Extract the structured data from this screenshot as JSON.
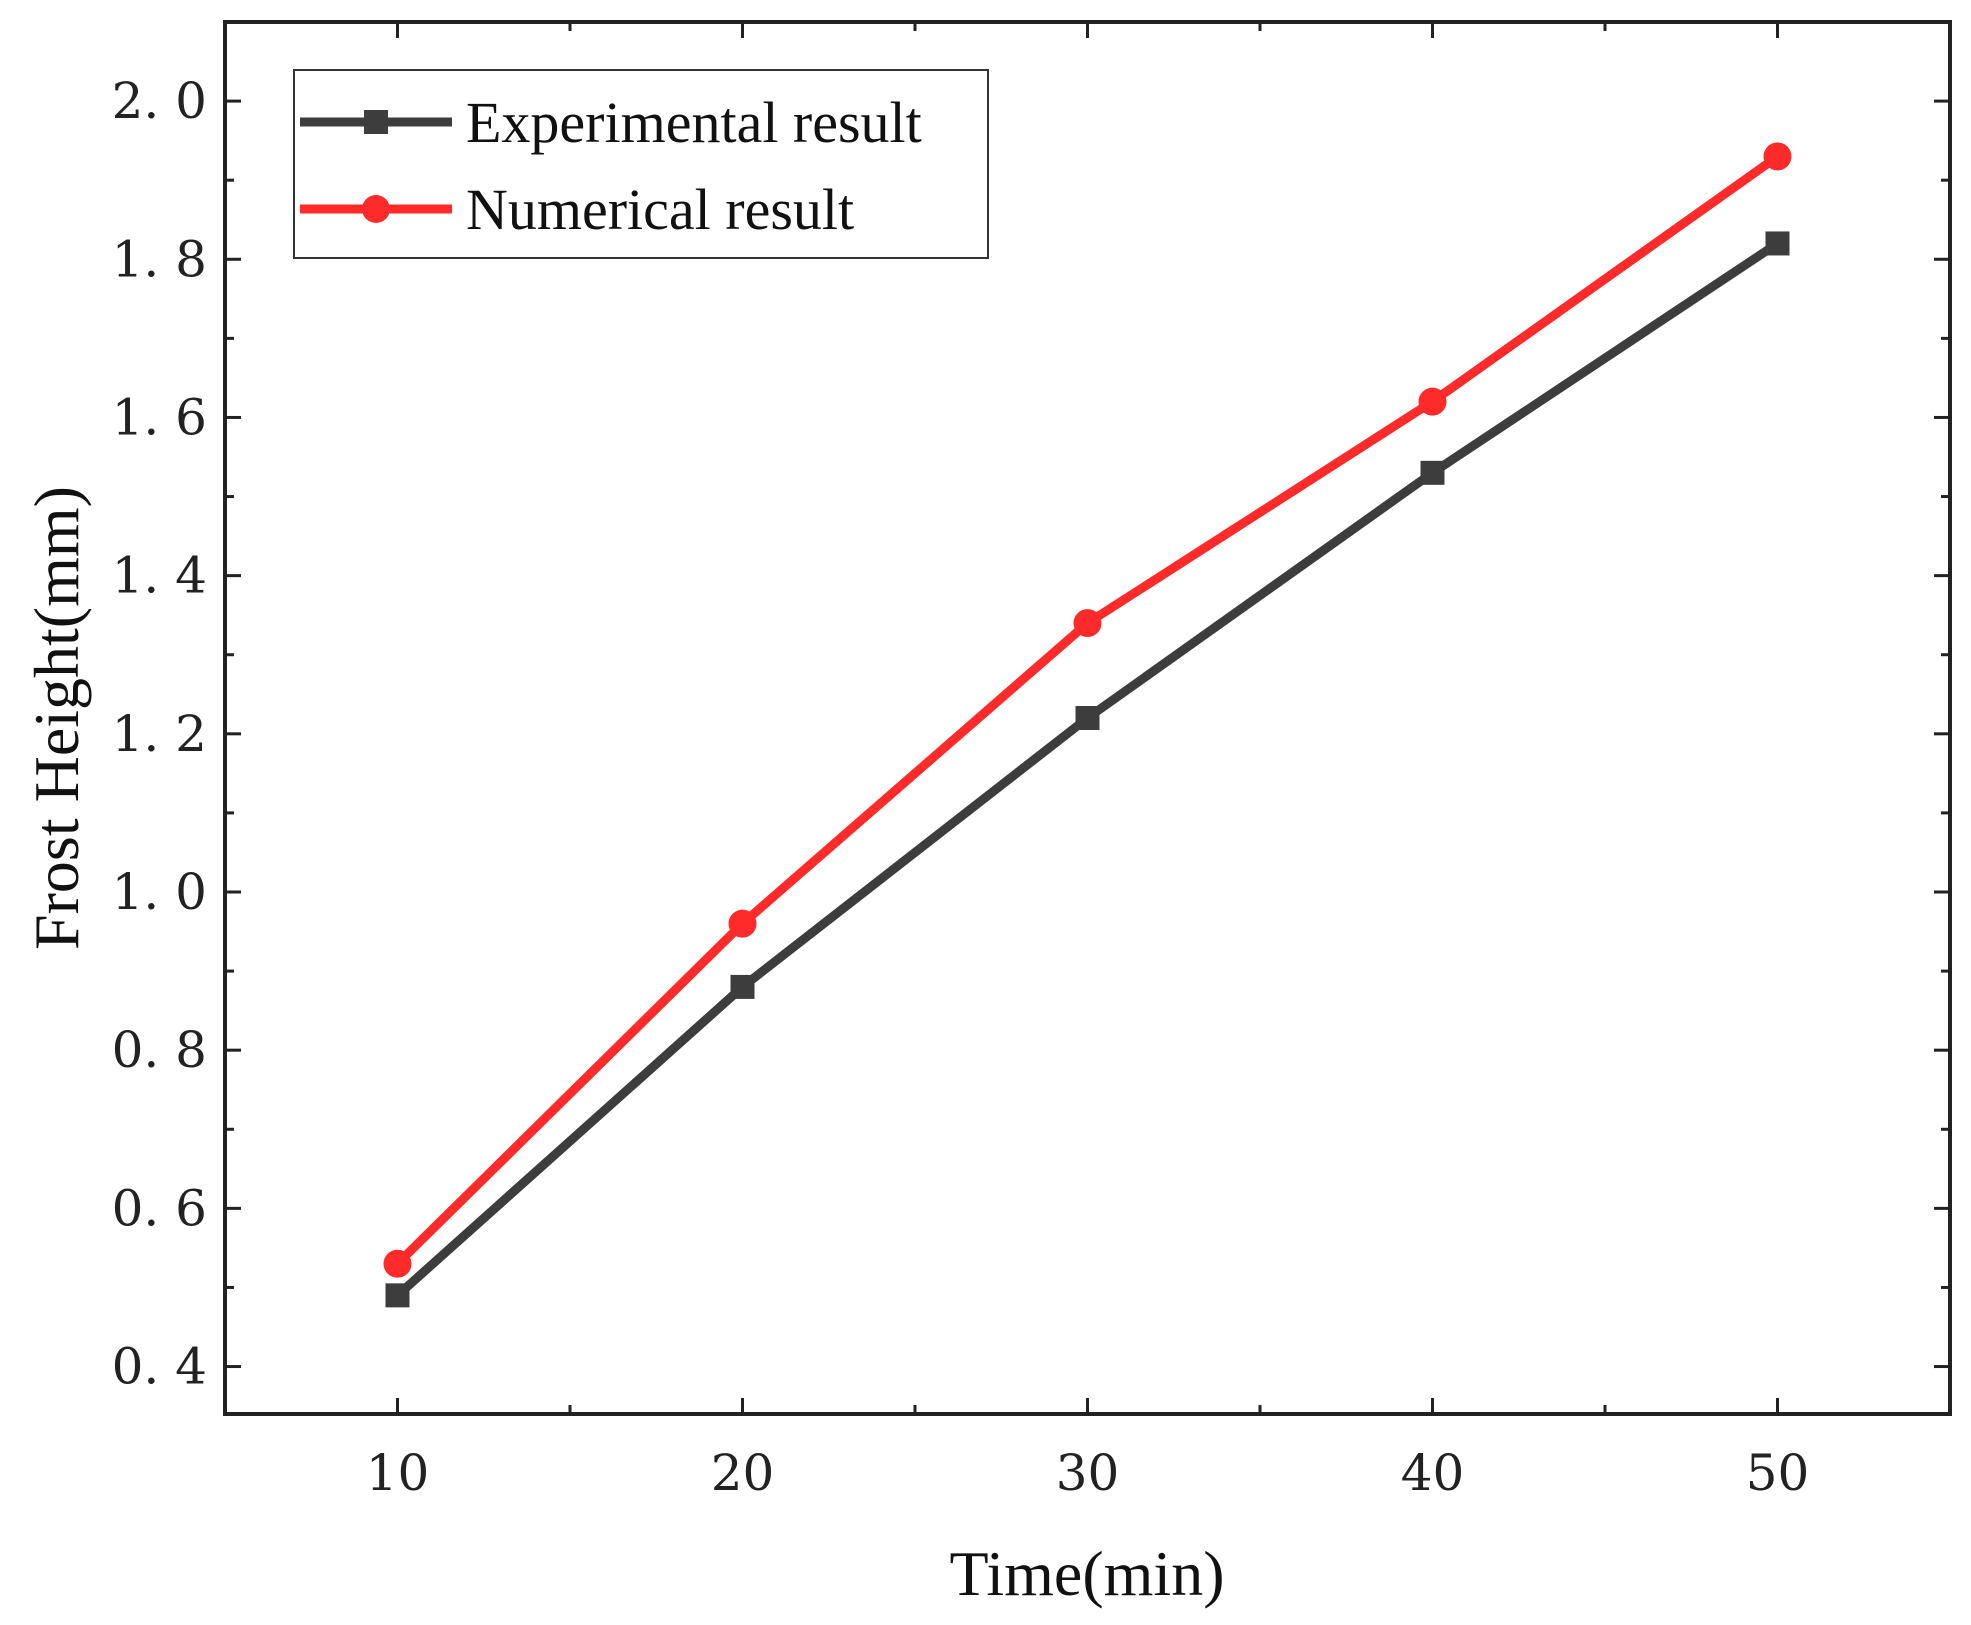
{
  "chart_data": {
    "type": "line",
    "title": "",
    "xlabel": "Time(min)",
    "ylabel": "Frost Height(mm)",
    "x": [
      10,
      20,
      30,
      40,
      50
    ],
    "xlim": [
      5,
      55
    ],
    "ylim": [
      0.34,
      2.1
    ],
    "xticks": [
      10,
      20,
      30,
      40,
      50
    ],
    "xtick_labels": [
      "10",
      "20",
      "30",
      "40",
      "50"
    ],
    "yticks": [
      0.4,
      0.6,
      0.8,
      1.0,
      1.2,
      1.4,
      1.6,
      1.8,
      2.0
    ],
    "ytick_labels": [
      "0. 4",
      "0. 6",
      "0. 8",
      "1. 0",
      "1. 2",
      "1. 4",
      "1. 6",
      "1. 8",
      "2. 0"
    ],
    "grid": false,
    "legend_position": "top-left",
    "series": [
      {
        "name": "Experimental result",
        "marker": "square",
        "color": "#3d3d3d",
        "values": [
          0.49,
          0.88,
          1.22,
          1.53,
          1.82
        ]
      },
      {
        "name": "Numerical result",
        "marker": "circle",
        "color": "#ff2a2a",
        "values": [
          0.53,
          0.96,
          1.34,
          1.62,
          1.93
        ]
      }
    ]
  }
}
